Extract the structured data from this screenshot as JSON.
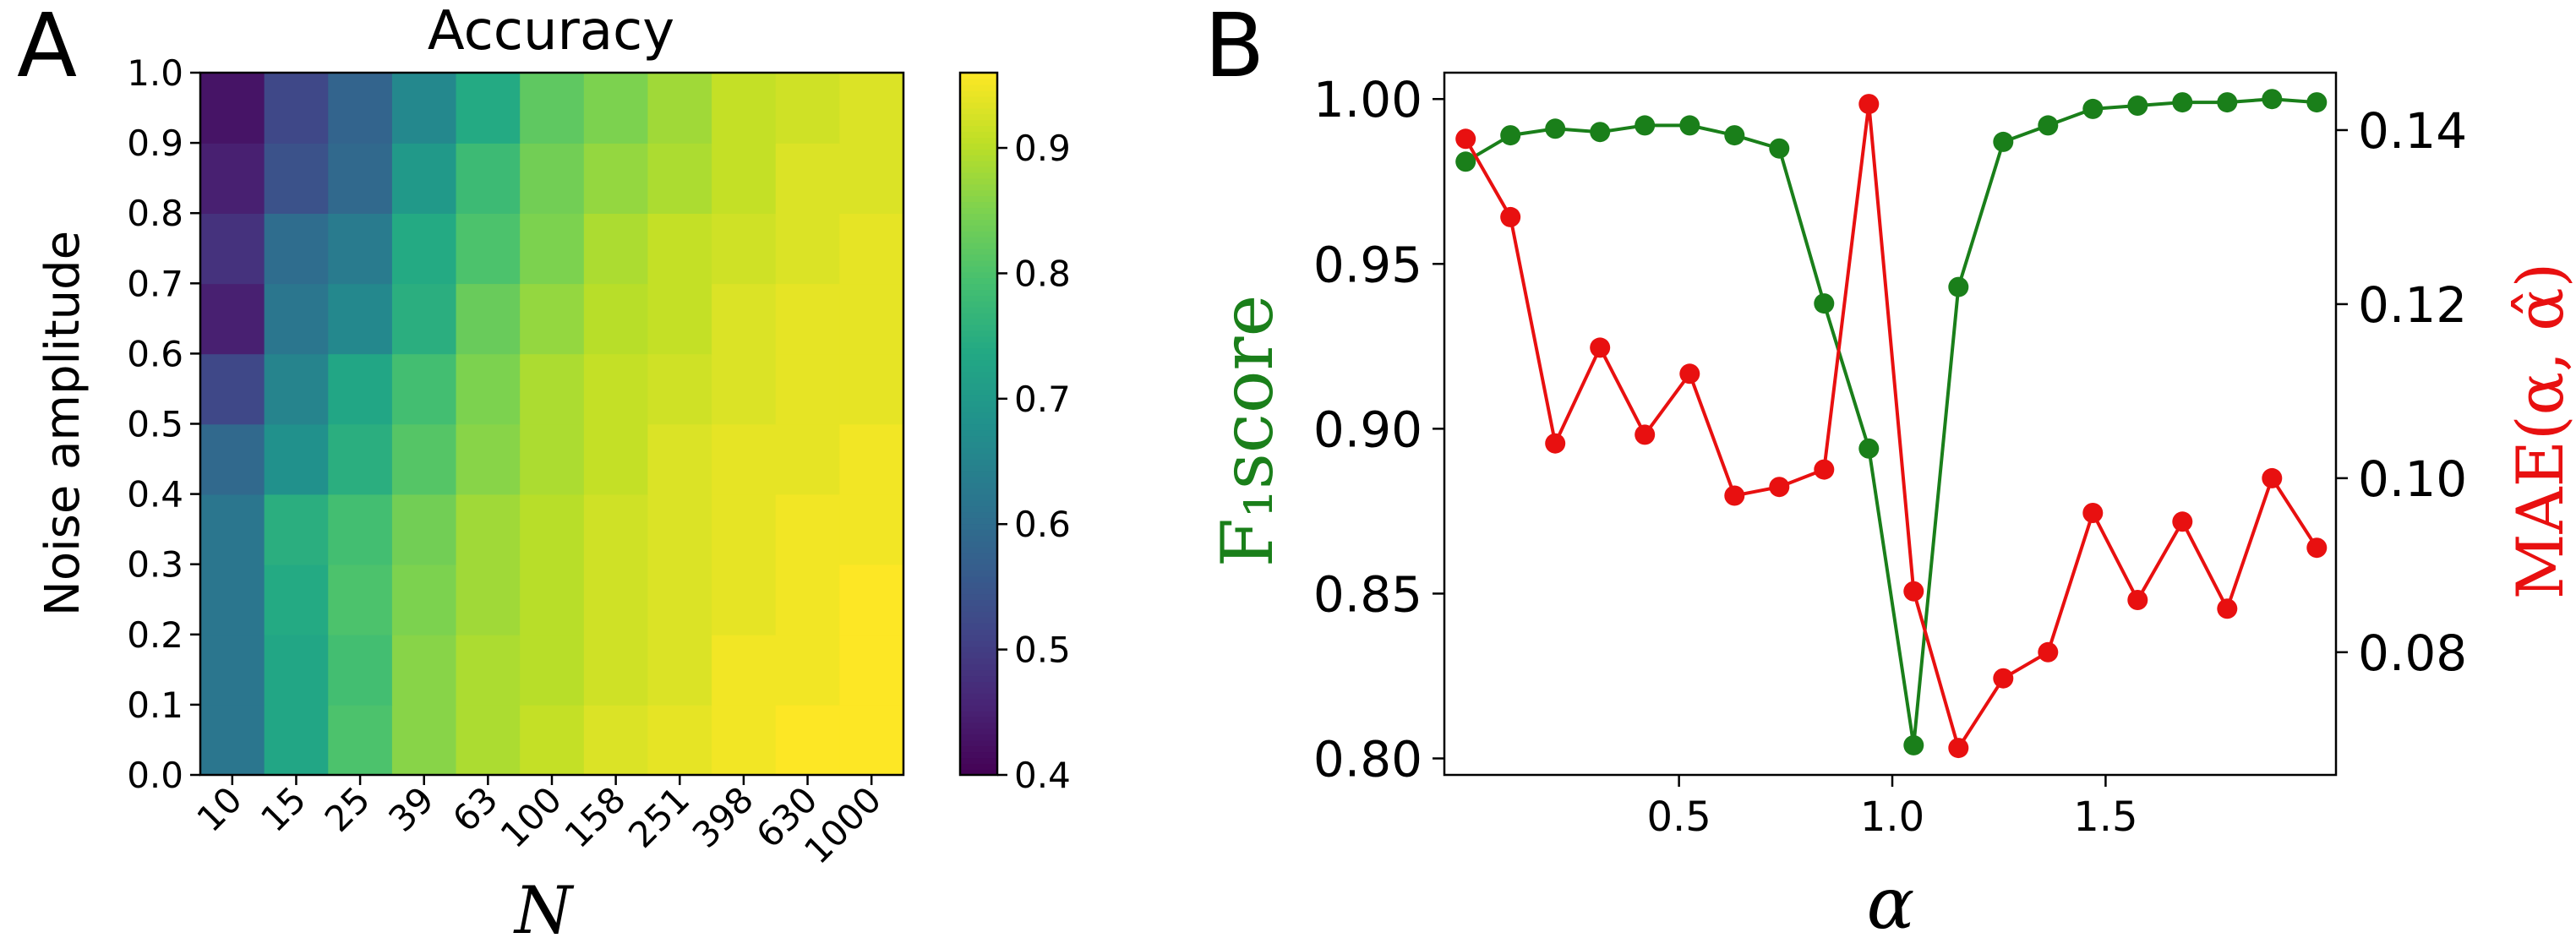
{
  "panels": {
    "a": "A",
    "b": "B"
  },
  "chart_data": [
    {
      "type": "heatmap",
      "title": "Accuracy",
      "xlabel": "N",
      "ylabel": "Noise amplitude",
      "x_categories": [
        "10",
        "15",
        "25",
        "39",
        "63",
        "100",
        "158",
        "251",
        "398",
        "630",
        "1000"
      ],
      "y_ticks": [
        "0.0",
        "0.1",
        "0.2",
        "0.3",
        "0.4",
        "0.5",
        "0.6",
        "0.7",
        "0.8",
        "0.9",
        "1.0"
      ],
      "y_rows_bottom_to_top": [
        "0.0",
        "0.1",
        "0.2",
        "0.3",
        "0.4",
        "0.5",
        "0.6",
        "0.7",
        "0.8",
        "0.9"
      ],
      "values": [
        [
          0.62,
          0.73,
          0.8,
          0.86,
          0.89,
          0.91,
          0.93,
          0.94,
          0.95,
          0.96,
          0.96
        ],
        [
          0.62,
          0.73,
          0.79,
          0.86,
          0.89,
          0.9,
          0.92,
          0.93,
          0.95,
          0.95,
          0.96
        ],
        [
          0.62,
          0.74,
          0.8,
          0.85,
          0.88,
          0.9,
          0.92,
          0.93,
          0.94,
          0.95,
          0.96
        ],
        [
          0.62,
          0.75,
          0.79,
          0.84,
          0.88,
          0.9,
          0.92,
          0.93,
          0.94,
          0.95,
          0.95
        ],
        [
          0.59,
          0.68,
          0.75,
          0.81,
          0.86,
          0.89,
          0.91,
          0.93,
          0.94,
          0.94,
          0.95
        ],
        [
          0.52,
          0.65,
          0.73,
          0.79,
          0.85,
          0.89,
          0.91,
          0.92,
          0.93,
          0.94,
          0.94
        ],
        [
          0.45,
          0.62,
          0.66,
          0.75,
          0.83,
          0.87,
          0.9,
          0.91,
          0.93,
          0.94,
          0.94
        ],
        [
          0.48,
          0.6,
          0.63,
          0.74,
          0.8,
          0.85,
          0.89,
          0.91,
          0.92,
          0.93,
          0.94
        ],
        [
          0.45,
          0.54,
          0.59,
          0.7,
          0.78,
          0.84,
          0.87,
          0.89,
          0.91,
          0.93,
          0.93
        ],
        [
          0.43,
          0.52,
          0.58,
          0.66,
          0.74,
          0.82,
          0.85,
          0.88,
          0.91,
          0.92,
          0.93
        ]
      ],
      "colorbar": {
        "min": 0.4,
        "max": 0.96,
        "ticks": [
          "0.4",
          "0.5",
          "0.6",
          "0.7",
          "0.8",
          "0.9"
        ],
        "colormap": "viridis"
      }
    },
    {
      "type": "line",
      "xlabel": "α",
      "x_ticks": [
        "0.5",
        "1.0",
        "1.5"
      ],
      "xlim": [
        -0.05,
        2.04
      ],
      "series": [
        {
          "name": "F₁score",
          "axis": "left",
          "color": "#1a7f1a",
          "x": [
            0.0,
            0.105,
            0.21,
            0.315,
            0.42,
            0.525,
            0.63,
            0.735,
            0.84,
            0.945,
            1.05,
            1.155,
            1.26,
            1.365,
            1.47,
            1.575,
            1.68,
            1.785,
            1.89,
            1.995
          ],
          "y": [
            0.981,
            0.989,
            0.991,
            0.99,
            0.992,
            0.992,
            0.989,
            0.985,
            0.938,
            0.894,
            0.804,
            0.943,
            0.987,
            0.992,
            0.997,
            0.998,
            0.999,
            0.999,
            1.0,
            0.999
          ]
        },
        {
          "name": "MAE(α, α̂)",
          "axis": "right",
          "color": "#e81010",
          "x": [
            0.0,
            0.105,
            0.21,
            0.315,
            0.42,
            0.525,
            0.63,
            0.735,
            0.84,
            0.945,
            1.05,
            1.155,
            1.26,
            1.365,
            1.47,
            1.575,
            1.68,
            1.785,
            1.89,
            1.995
          ],
          "y": [
            0.139,
            0.13,
            0.104,
            0.115,
            0.105,
            0.112,
            0.098,
            0.099,
            0.101,
            0.143,
            0.087,
            0.069,
            0.077,
            0.08,
            0.096,
            0.086,
            0.095,
            0.085,
            0.1,
            0.092
          ]
        }
      ],
      "left_axis": {
        "label": "F₁score",
        "ylim": [
          0.795,
          1.008
        ],
        "ticks": [
          "0.80",
          "0.85",
          "0.90",
          "0.95",
          "1.00"
        ]
      },
      "right_axis": {
        "label": "MAE(α, α̂)",
        "ylim": [
          0.0659,
          0.1466
        ],
        "ticks": [
          "0.08",
          "0.10",
          "0.12",
          "0.14"
        ]
      }
    }
  ]
}
